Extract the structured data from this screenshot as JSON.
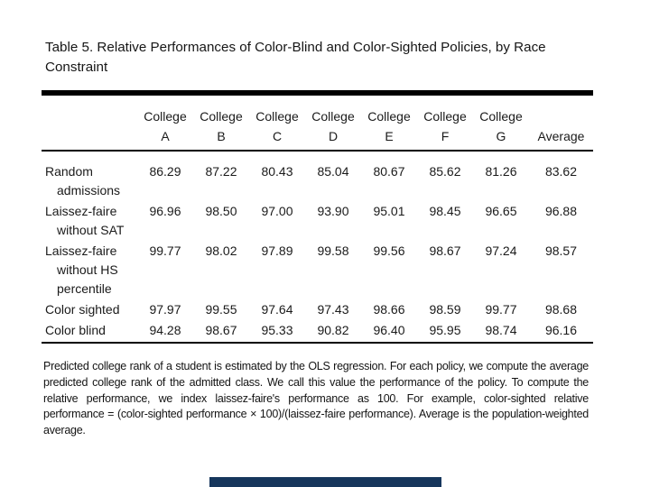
{
  "page": {
    "title": "Table 5. Relative Performances of Color-Blind and Color-Sighted Policies, by Race Constraint"
  },
  "table": {
    "column_headers": {
      "group_label": "College",
      "college_letters": [
        "A",
        "B",
        "C",
        "D",
        "E",
        "F",
        "G"
      ],
      "average_label": "Average"
    },
    "rows": [
      {
        "label_lines": [
          "Random",
          "admissions"
        ],
        "values": [
          "86.29",
          "87.22",
          "80.43",
          "85.04",
          "80.67",
          "85.62",
          "81.26",
          "83.62"
        ]
      },
      {
        "label_lines": [
          "Laissez-faire",
          "without SAT"
        ],
        "values": [
          "96.96",
          "98.50",
          "97.00",
          "93.90",
          "95.01",
          "98.45",
          "96.65",
          "96.88"
        ]
      },
      {
        "label_lines": [
          "Laissez-faire",
          "without HS",
          "percentile"
        ],
        "values": [
          "99.77",
          "98.02",
          "97.89",
          "99.58",
          "99.56",
          "98.67",
          "97.24",
          "98.57"
        ]
      },
      {
        "label_lines": [
          "Color sighted"
        ],
        "values": [
          "97.97",
          "99.55",
          "97.64",
          "97.43",
          "98.66",
          "98.59",
          "99.77",
          "98.68"
        ]
      },
      {
        "label_lines": [
          "Color blind"
        ],
        "values": [
          "94.28",
          "98.67",
          "95.33",
          "90.82",
          "96.40",
          "95.95",
          "98.74",
          "96.16"
        ]
      }
    ]
  },
  "footnote": "Predicted college rank of a student is estimated by the OLS regression. For each policy, we compute the average predicted college rank of the admitted class. We call this value the performance of the policy. To compute the relative performance, we index laissez-faire's performance as 100. For example, color-sighted relative performance = (color-sighted performance × 100)/(laissez-faire performance). Average is the population-weighted average.",
  "colors": {
    "text": "#1a1a1a",
    "rule": "#000000",
    "bottom_bar": "#16365c"
  }
}
